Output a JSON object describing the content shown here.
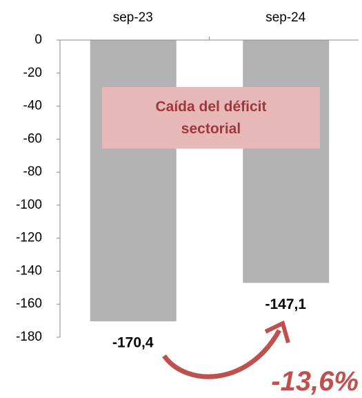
{
  "chart_data": {
    "type": "bar",
    "categories": [
      "sep-23",
      "sep-24"
    ],
    "values": [
      -170.4,
      -147.1
    ],
    "value_labels": [
      "-170,4",
      "-147,1"
    ],
    "color": "#b3b3b3",
    "ylim": [
      -180,
      0
    ],
    "yticks": [
      0,
      -20,
      -40,
      -60,
      -80,
      -100,
      -120,
      -140,
      -160,
      -180
    ],
    "annotations": [
      "Caída del déficit sectorial",
      "-13,6%"
    ]
  }
}
